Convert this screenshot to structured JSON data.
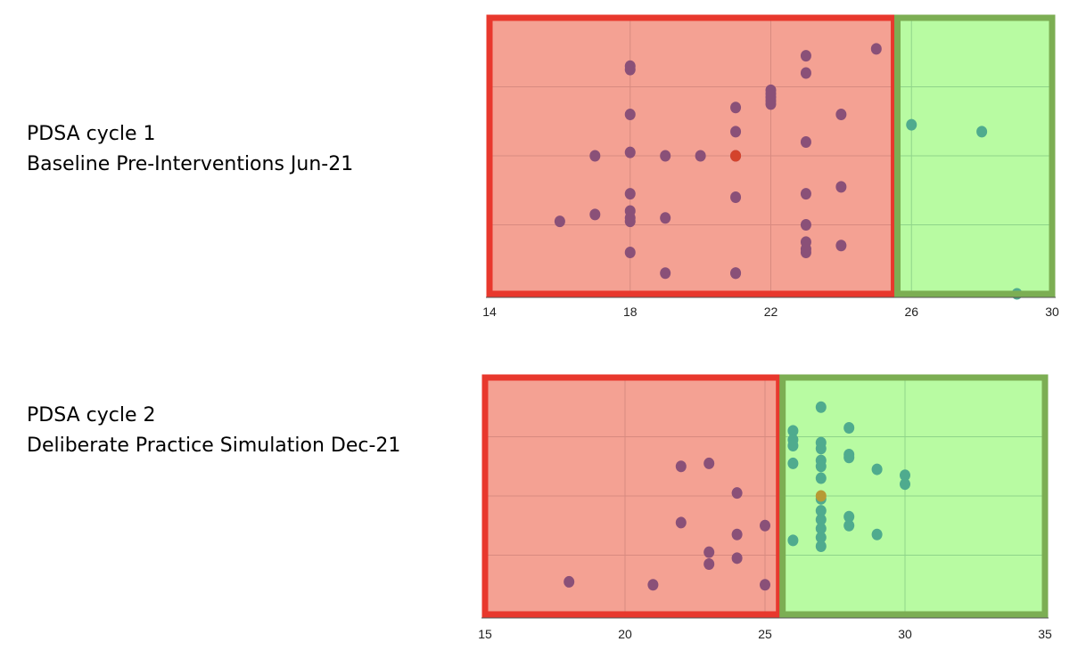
{
  "captions": [
    {
      "line1": "PDSA cycle 1",
      "line2": "Baseline Pre-Interventions Jun-21"
    },
    {
      "line1": "PDSA cycle 2",
      "line2": "Deliberate Practice Simulation Dec-21"
    }
  ],
  "colors": {
    "red_region_fill": "#f4a193",
    "red_region_border": "#e8382d",
    "green_region_fill": "#b8fba2",
    "green_region_border": "#7cae53",
    "point_purple": "#8a5078",
    "point_teal": "#4fab8e",
    "point_highlight_1": "#d4432c",
    "point_highlight_2": "#b79a35",
    "grid": "#d88a80"
  },
  "chart_data": [
    {
      "type": "scatter",
      "xlim": [
        14,
        30
      ],
      "xticks": [
        "14",
        "18",
        "22",
        "26",
        "30"
      ],
      "ylim": [
        0,
        8
      ],
      "threshold": 25.5,
      "grid": true,
      "highlight": [
        21,
        4
      ],
      "x": [
        16,
        17,
        17,
        18,
        18,
        18,
        18,
        18,
        18,
        18,
        18,
        18,
        19,
        19,
        19,
        20,
        21,
        21,
        21,
        21,
        21,
        21,
        22,
        22,
        22,
        22,
        22,
        23,
        23,
        23,
        23,
        23,
        23,
        23,
        23,
        24,
        24,
        24,
        25,
        26,
        28,
        29
      ],
      "y": [
        2.1,
        4.0,
        2.3,
        6.6,
        6.5,
        4.1,
        2.9,
        2.4,
        2.2,
        2.1,
        1.2,
        5.2,
        0.6,
        2.2,
        4.0,
        4.0,
        5.4,
        4.7,
        2.8,
        0.6,
        4.0,
        0.6,
        5.9,
        5.8,
        5.7,
        5.6,
        5.5,
        2.0,
        1.5,
        1.3,
        1.2,
        4.4,
        2.9,
        6.9,
        6.4,
        3.1,
        1.4,
        5.2,
        7.1,
        4.9,
        4.7,
        0
      ]
    },
    {
      "type": "scatter",
      "xlim": [
        15,
        35
      ],
      "xticks": [
        "15",
        "20",
        "25",
        "30",
        "35"
      ],
      "ylim": [
        0,
        8
      ],
      "threshold": 25.5,
      "grid": true,
      "highlight": [
        27,
        4
      ],
      "x": [
        18,
        21,
        22,
        22,
        23,
        23,
        23,
        24,
        24,
        24,
        25,
        25,
        26,
        26,
        26,
        26,
        26,
        27,
        27,
        27,
        27,
        27,
        27,
        27,
        27,
        27,
        27,
        27,
        27,
        28,
        28,
        28,
        28,
        28,
        29,
        29,
        30,
        30
      ],
      "y": [
        1.1,
        1.0,
        5.0,
        3.1,
        5.1,
        2.1,
        1.7,
        4.1,
        2.7,
        1.9,
        1.0,
        3.0,
        6.2,
        5.9,
        5.7,
        5.1,
        2.5,
        7.0,
        5.8,
        5.6,
        5.2,
        5.0,
        4.6,
        3.9,
        3.5,
        3.2,
        2.9,
        2.6,
        2.3,
        6.3,
        5.4,
        5.3,
        3.3,
        3.0,
        2.7,
        4.9,
        4.7,
        4.4
      ]
    }
  ]
}
